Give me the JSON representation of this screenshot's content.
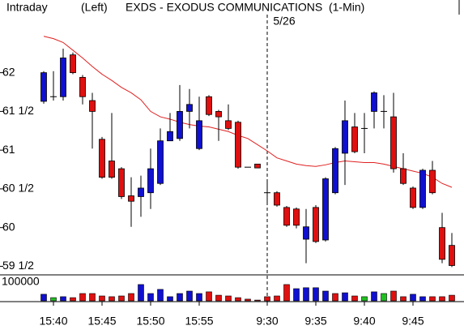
{
  "chart_data": {
    "type": "candlestick",
    "title_left": "Intraday",
    "mode": "(Left)",
    "title": "EXDS - EXODUS COMMUNICATIONS  (1-Min)",
    "annotation": "5/26",
    "categories": [
      null,
      "15:40",
      null,
      null,
      null,
      null,
      "15:45",
      null,
      null,
      null,
      null,
      "15:50",
      null,
      null,
      null,
      null,
      "15:55",
      null,
      null,
      null,
      null,
      null,
      null,
      "9:30",
      null,
      null,
      null,
      null,
      "9:35",
      null,
      null,
      null,
      null,
      "9:40",
      null,
      null,
      null,
      null,
      "9:45",
      null,
      null,
      null,
      null
    ],
    "open": [
      61.63,
      61.69,
      61.69,
      62.23,
      61.94,
      61.64,
      61.14,
      60.86,
      60.76,
      60.41,
      60.4,
      60.45,
      60.57,
      61.12,
      61.15,
      61.5,
      61.02,
      61.69,
      61.5,
      61.38,
      61.36,
      60.78,
      60.82,
      60.45,
      60.45,
      60.26,
      60.24,
      59.85,
      60.26,
      59.84,
      60.45,
      60.96,
      61.3,
      61.28,
      61.5,
      61.5,
      61.43,
      60.76,
      60.51,
      60.26,
      60.74,
      60.0,
      59.77
    ],
    "high": [
      62.02,
      62.02,
      62.31,
      62.26,
      61.97,
      61.74,
      61.17,
      61.48,
      60.78,
      60.65,
      60.67,
      61.02,
      61.28,
      61.48,
      61.84,
      61.79,
      61.69,
      61.71,
      61.52,
      61.59,
      61.38,
      60.78,
      60.82,
      60.6,
      60.47,
      60.28,
      60.26,
      60.24,
      60.29,
      60.65,
      61.04,
      61.64,
      61.48,
      61.48,
      61.76,
      61.71,
      61.74,
      60.96,
      60.53,
      60.76,
      60.86,
      60.19,
      59.93
    ],
    "low": [
      61.6,
      61.64,
      61.64,
      61.98,
      61.59,
      61.02,
      60.63,
      60.63,
      60.37,
      60.01,
      60.14,
      60.24,
      60.55,
      61.12,
      61.12,
      61.28,
      61.0,
      61.44,
      61.12,
      61.26,
      60.76,
      60.78,
      60.77,
      60.29,
      60.27,
      60.01,
      59.99,
      59.54,
      59.8,
      59.82,
      60.43,
      60.55,
      60.96,
      60.96,
      61.28,
      61.28,
      60.71,
      60.55,
      60.24,
      60.24,
      60.43,
      59.54,
      59.49
    ],
    "close": [
      62.0,
      61.69,
      62.19,
      62.0,
      61.69,
      61.5,
      60.65,
      60.65,
      60.4,
      60.34,
      60.51,
      60.76,
      61.12,
      61.24,
      61.5,
      61.59,
      61.38,
      61.46,
      61.43,
      61.28,
      60.78,
      60.78,
      60.77,
      60.45,
      60.29,
      60.03,
      60.03,
      60.01,
      59.82,
      60.63,
      61.02,
      61.38,
      60.98,
      61.28,
      61.74,
      61.5,
      60.76,
      60.57,
      60.26,
      60.74,
      60.45,
      59.59,
      59.51
    ],
    "up_color": "#1010d0",
    "down_color": "#e01010",
    "moving_average": {
      "color": "#e02020",
      "values": [
        62.47,
        62.44,
        62.39,
        62.29,
        62.19,
        62.08,
        61.98,
        61.9,
        61.81,
        61.74,
        61.65,
        61.5,
        61.43,
        61.4,
        61.36,
        61.33,
        61.31,
        61.3,
        61.27,
        61.24,
        61.19,
        61.15,
        61.07,
        60.99,
        60.9,
        60.86,
        60.82,
        60.8,
        60.79,
        60.81,
        60.84,
        60.86,
        60.85,
        60.84,
        60.84,
        60.82,
        60.79,
        60.76,
        60.73,
        60.7,
        60.65,
        60.57,
        60.52
      ]
    },
    "ylim": [
      59.4,
      62.75
    ],
    "yticks": [
      62,
      {
        "value": 61.5,
        "label": "61 1/2"
      },
      61,
      {
        "value": 60.5,
        "label": "60 1/2"
      },
      60,
      {
        "value": 59.5,
        "label": "59 1/2"
      }
    ],
    "volume": {
      "values": [
        35000,
        17000,
        22000,
        17000,
        39000,
        39000,
        26000,
        22000,
        26000,
        39000,
        87000,
        39000,
        61000,
        22000,
        39000,
        52000,
        39000,
        48000,
        30000,
        26000,
        17000,
        9000,
        4000,
        22000,
        26000,
        87000,
        65000,
        70000,
        70000,
        52000,
        39000,
        43000,
        26000,
        22000,
        48000,
        39000,
        52000,
        22000,
        35000,
        22000,
        22000,
        22000,
        30000
      ],
      "colors": [
        "#1010d0",
        "#20c020",
        "#1010d0",
        "#e01010",
        "#e01010",
        "#e01010",
        "#e01010",
        "#e01010",
        "#e01010",
        "#e01010",
        "#1010d0",
        "#1010d0",
        "#1010d0",
        "#1010d0",
        "#1010d0",
        "#1010d0",
        "#1010d0",
        "#e01010",
        "#e01010",
        "#e01010",
        "#e01010",
        "#e01010",
        "#e01010",
        "#e01010",
        "#e01010",
        "#e01010",
        "#1010d0",
        "#1010d0",
        "#1010d0",
        "#1010d0",
        "#e01010",
        "#1010d0",
        "#e01010",
        "#20c020",
        "#1010d0",
        "#20c020",
        "#e01010",
        "#e01010",
        "#1010d0",
        "#1010d0",
        "#e01010",
        "#e01010",
        "#e01010"
      ],
      "ylim": [
        0,
        130000
      ],
      "yticks": [
        100000
      ]
    }
  }
}
